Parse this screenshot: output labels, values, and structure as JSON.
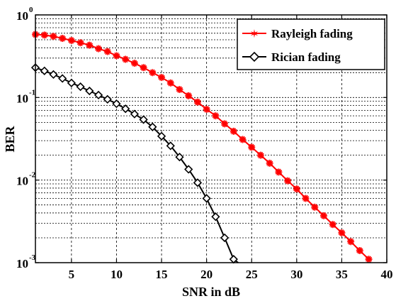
{
  "chart_data": {
    "type": "line",
    "xlabel": "SNR in dB",
    "ylabel": "BER",
    "xlim": [
      1,
      40
    ],
    "ylim": [
      0.001,
      1
    ],
    "yscale": "log",
    "grid": true,
    "legend_position": "top-right",
    "x_ticks": [
      {
        "value": 5,
        "label": "5"
      },
      {
        "value": 10,
        "label": "10"
      },
      {
        "value": 15,
        "label": "15"
      },
      {
        "value": 20,
        "label": "20"
      },
      {
        "value": 25,
        "label": "25"
      },
      {
        "value": 30,
        "label": "30"
      },
      {
        "value": 35,
        "label": "35"
      },
      {
        "value": 40,
        "label": "40"
      }
    ],
    "y_ticks": [
      {
        "value": 1,
        "base": "10",
        "exp": "0"
      },
      {
        "value": 0.1,
        "base": "10",
        "exp": "-1"
      },
      {
        "value": 0.01,
        "base": "10",
        "exp": "-2"
      },
      {
        "value": 0.001,
        "base": "10",
        "exp": "-3"
      }
    ],
    "series": [
      {
        "name": "Rayleigh fading",
        "color": "#ff0000",
        "marker": "star",
        "x": [
          1,
          2,
          3,
          4,
          5,
          6,
          7,
          8,
          9,
          10,
          11,
          12,
          13,
          14,
          15,
          16,
          17,
          18,
          19,
          20,
          21,
          22,
          23,
          24,
          25,
          26,
          27,
          28,
          29,
          30,
          31,
          32,
          33,
          34,
          35,
          36,
          37,
          38
        ],
        "y": [
          0.58,
          0.57,
          0.55,
          0.52,
          0.49,
          0.46,
          0.43,
          0.39,
          0.36,
          0.32,
          0.29,
          0.26,
          0.23,
          0.2,
          0.175,
          0.15,
          0.125,
          0.105,
          0.088,
          0.072,
          0.06,
          0.048,
          0.039,
          0.031,
          0.025,
          0.02,
          0.016,
          0.0125,
          0.0098,
          0.0078,
          0.006,
          0.0047,
          0.0037,
          0.0029,
          0.0023,
          0.0018,
          0.0014,
          0.0011
        ]
      },
      {
        "name": "Rician fading",
        "color": "#000000",
        "marker": "diamond",
        "x": [
          1,
          2,
          3,
          4,
          5,
          6,
          7,
          8,
          9,
          10,
          11,
          12,
          13,
          14,
          15,
          16,
          17,
          18,
          19,
          20,
          21,
          22,
          23
        ],
        "y": [
          0.23,
          0.21,
          0.19,
          0.17,
          0.15,
          0.135,
          0.12,
          0.107,
          0.095,
          0.084,
          0.073,
          0.063,
          0.054,
          0.044,
          0.034,
          0.026,
          0.019,
          0.0135,
          0.0093,
          0.006,
          0.0036,
          0.002,
          0.0011
        ],
        "tail": {
          "x": 23.5,
          "y": 0.001
        }
      }
    ]
  }
}
